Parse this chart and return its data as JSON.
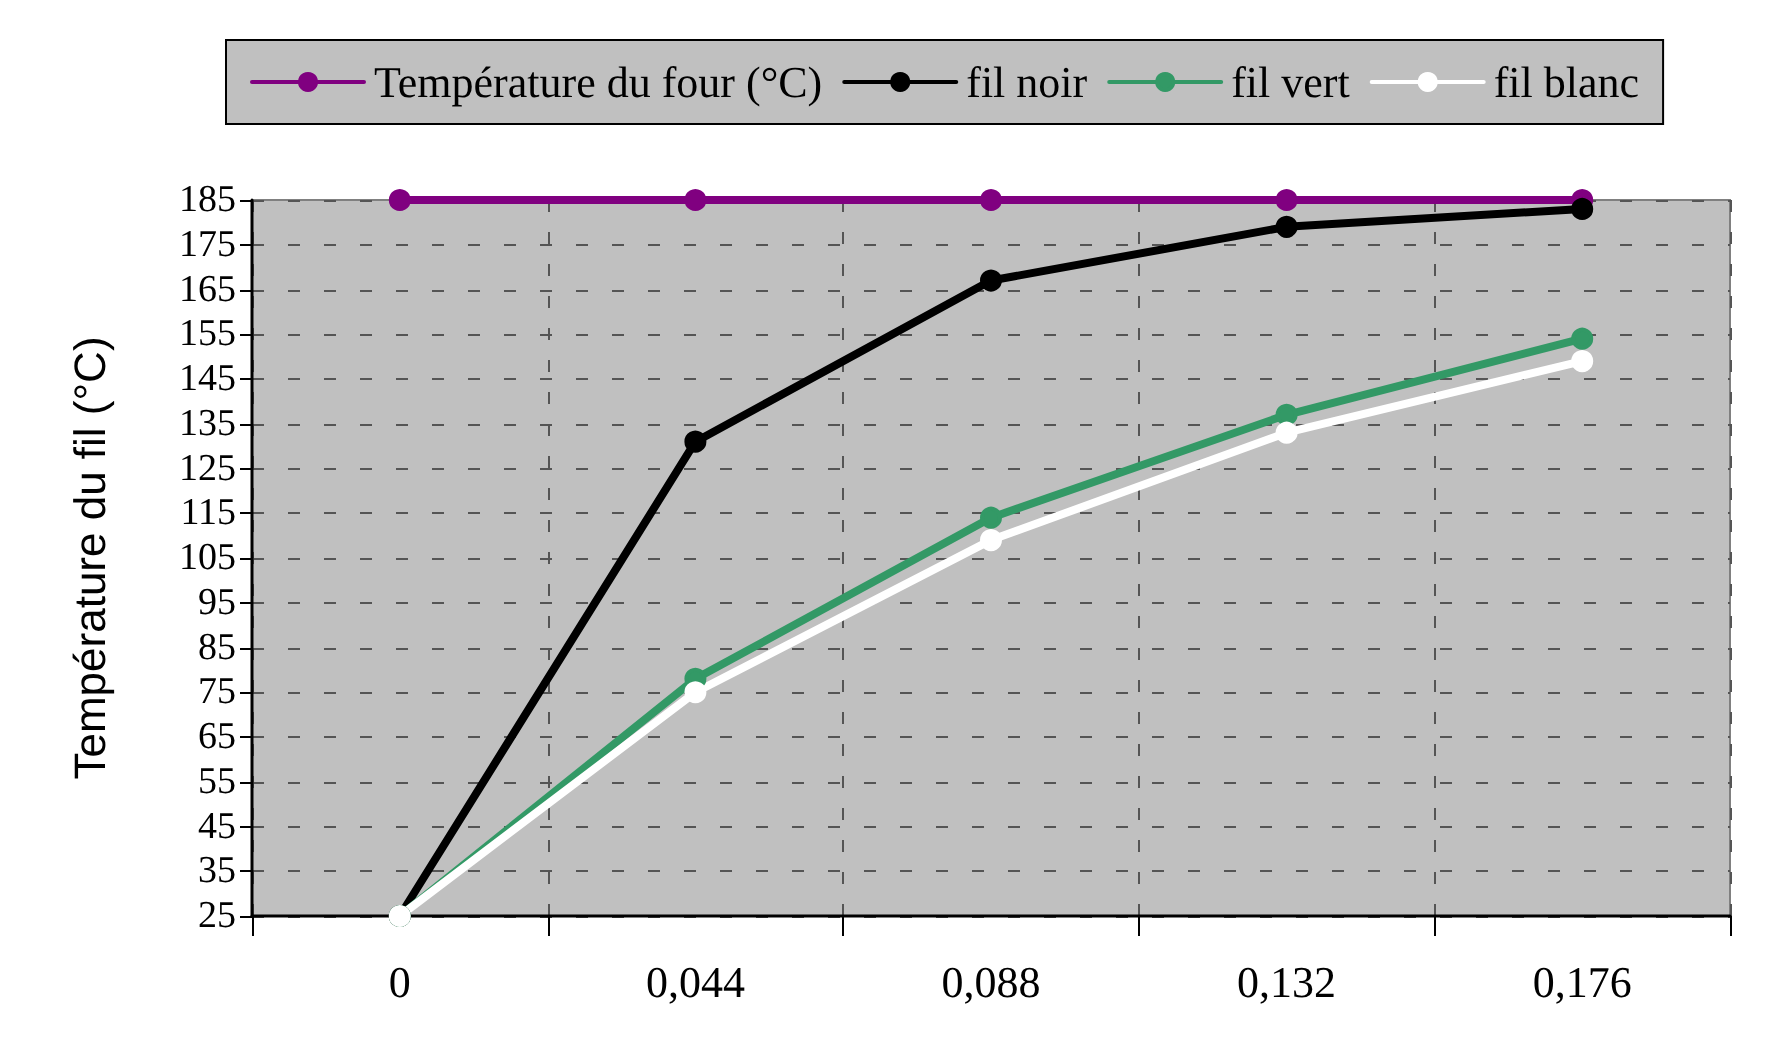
{
  "chart_data": {
    "type": "line",
    "ylabel": "Température du fil (°C)",
    "categories": [
      "0",
      "0,044",
      "0,088",
      "0,132",
      "0,176"
    ],
    "ylim": [
      25,
      185
    ],
    "yticks": [
      25,
      35,
      45,
      55,
      65,
      75,
      85,
      95,
      105,
      115,
      125,
      135,
      145,
      155,
      165,
      175,
      185
    ],
    "grid": true,
    "legend": "top",
    "marker": "circle",
    "line_style": "solid",
    "series": [
      {
        "name": "Température du four (°C)",
        "color": "#800080",
        "values": [
          185,
          185,
          185,
          185,
          185
        ]
      },
      {
        "name": "fil noir",
        "color": "#000000",
        "values": [
          25,
          131,
          167,
          179,
          183
        ]
      },
      {
        "name": "fil vert",
        "color": "#339966",
        "values": [
          25,
          78,
          114,
          137,
          154
        ]
      },
      {
        "name": "fil blanc",
        "color": "#ffffff",
        "values": [
          25,
          75,
          109,
          133,
          149
        ]
      }
    ]
  }
}
